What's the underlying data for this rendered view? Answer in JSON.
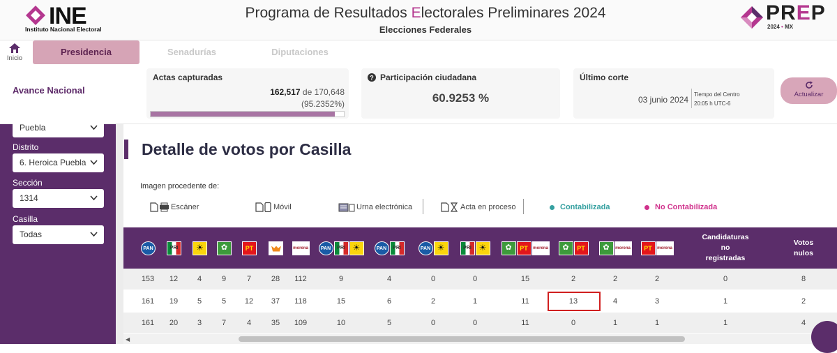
{
  "header": {
    "ine_word": "INE",
    "ine_sub": "Instituto Nacional Electoral",
    "title_pre": "Programa de Resultados ",
    "title_accent": "E",
    "title_post": "lectorales Preliminares 2024",
    "subtitle": "Elecciones Federales",
    "prep_pre": "PR",
    "prep_accent": "E",
    "prep_post": "P",
    "prep_year": "2024",
    "prep_dot": "•",
    "prep_country": "MX"
  },
  "nav": {
    "home_label": "Inicio",
    "tabs": [
      "Presidencia",
      "Senadurías",
      "Diputaciones"
    ],
    "active_tab": "Presidencia"
  },
  "summary": {
    "avance_label": "Avance Nacional",
    "actas": {
      "title": "Actas capturadas",
      "captured": "162,517",
      "of_text": " de 170,648",
      "percent_text": "(95.2352%)",
      "progress": 0.952352
    },
    "participacion": {
      "title": "Participación ciudadana",
      "value": "60.9253 %"
    },
    "corte": {
      "title": "Último corte",
      "date": "03 junio 2024",
      "tz_line1": "Tiempo del Centro",
      "tz_line2": "20:05 h UTC-6"
    },
    "refresh_label": "Actualizar"
  },
  "filters": {
    "estado_value": "Puebla",
    "distrito_label": "Distrito",
    "distrito_value": "6. Heroica Puebla",
    "seccion_label": "Sección",
    "seccion_value": "1314",
    "casilla_label": "Casilla",
    "casilla_value": "Todas"
  },
  "detail": {
    "title": "Detalle de votos por Casilla",
    "image_source_label": "Imagen procedente de:",
    "legend": {
      "scanner": "Escáner",
      "movil": "Móvil",
      "urna": "Urna electrónica",
      "proceso": "Acta en proceso",
      "contabilizada": "Contabilizada",
      "no_contabilizada": "No Contabilizada"
    },
    "columns": [
      "PAN",
      "PRI",
      "PRD",
      "PVEM",
      "PT",
      "MC",
      "MORENA",
      "PAN-PRI-PRD",
      "PAN-PRI",
      "PAN-PRD",
      "PRI-PRD",
      "PVEM-PT-MORENA",
      "PVEM-PT",
      "PVEM-MORENA",
      "PT-MORENA",
      "Candidaturas no registradas",
      "Votos nulos"
    ],
    "header_text": {
      "no_registradas": [
        "Candidaturas",
        "no",
        "registradas"
      ],
      "nulos": [
        "Votos",
        "nulos"
      ]
    },
    "rows": [
      [
        "153",
        "12",
        "4",
        "9",
        "7",
        "28",
        "112",
        "9",
        "4",
        "0",
        "0",
        "15",
        "2",
        "2",
        "2",
        "0",
        "8"
      ],
      [
        "161",
        "19",
        "5",
        "5",
        "12",
        "37",
        "118",
        "15",
        "6",
        "2",
        "1",
        "11",
        "13",
        "4",
        "3",
        "1",
        "2"
      ],
      [
        "161",
        "20",
        "3",
        "7",
        "4",
        "35",
        "109",
        "10",
        "5",
        "0",
        "0",
        "11",
        "0",
        "1",
        "1",
        "1",
        "4"
      ]
    ]
  },
  "colors": {
    "purple": "#5b2d6a",
    "pink": "#b4378f",
    "tab_active": "#d6a4b6",
    "teal": "#35a0a0",
    "magenta": "#d0318c"
  }
}
